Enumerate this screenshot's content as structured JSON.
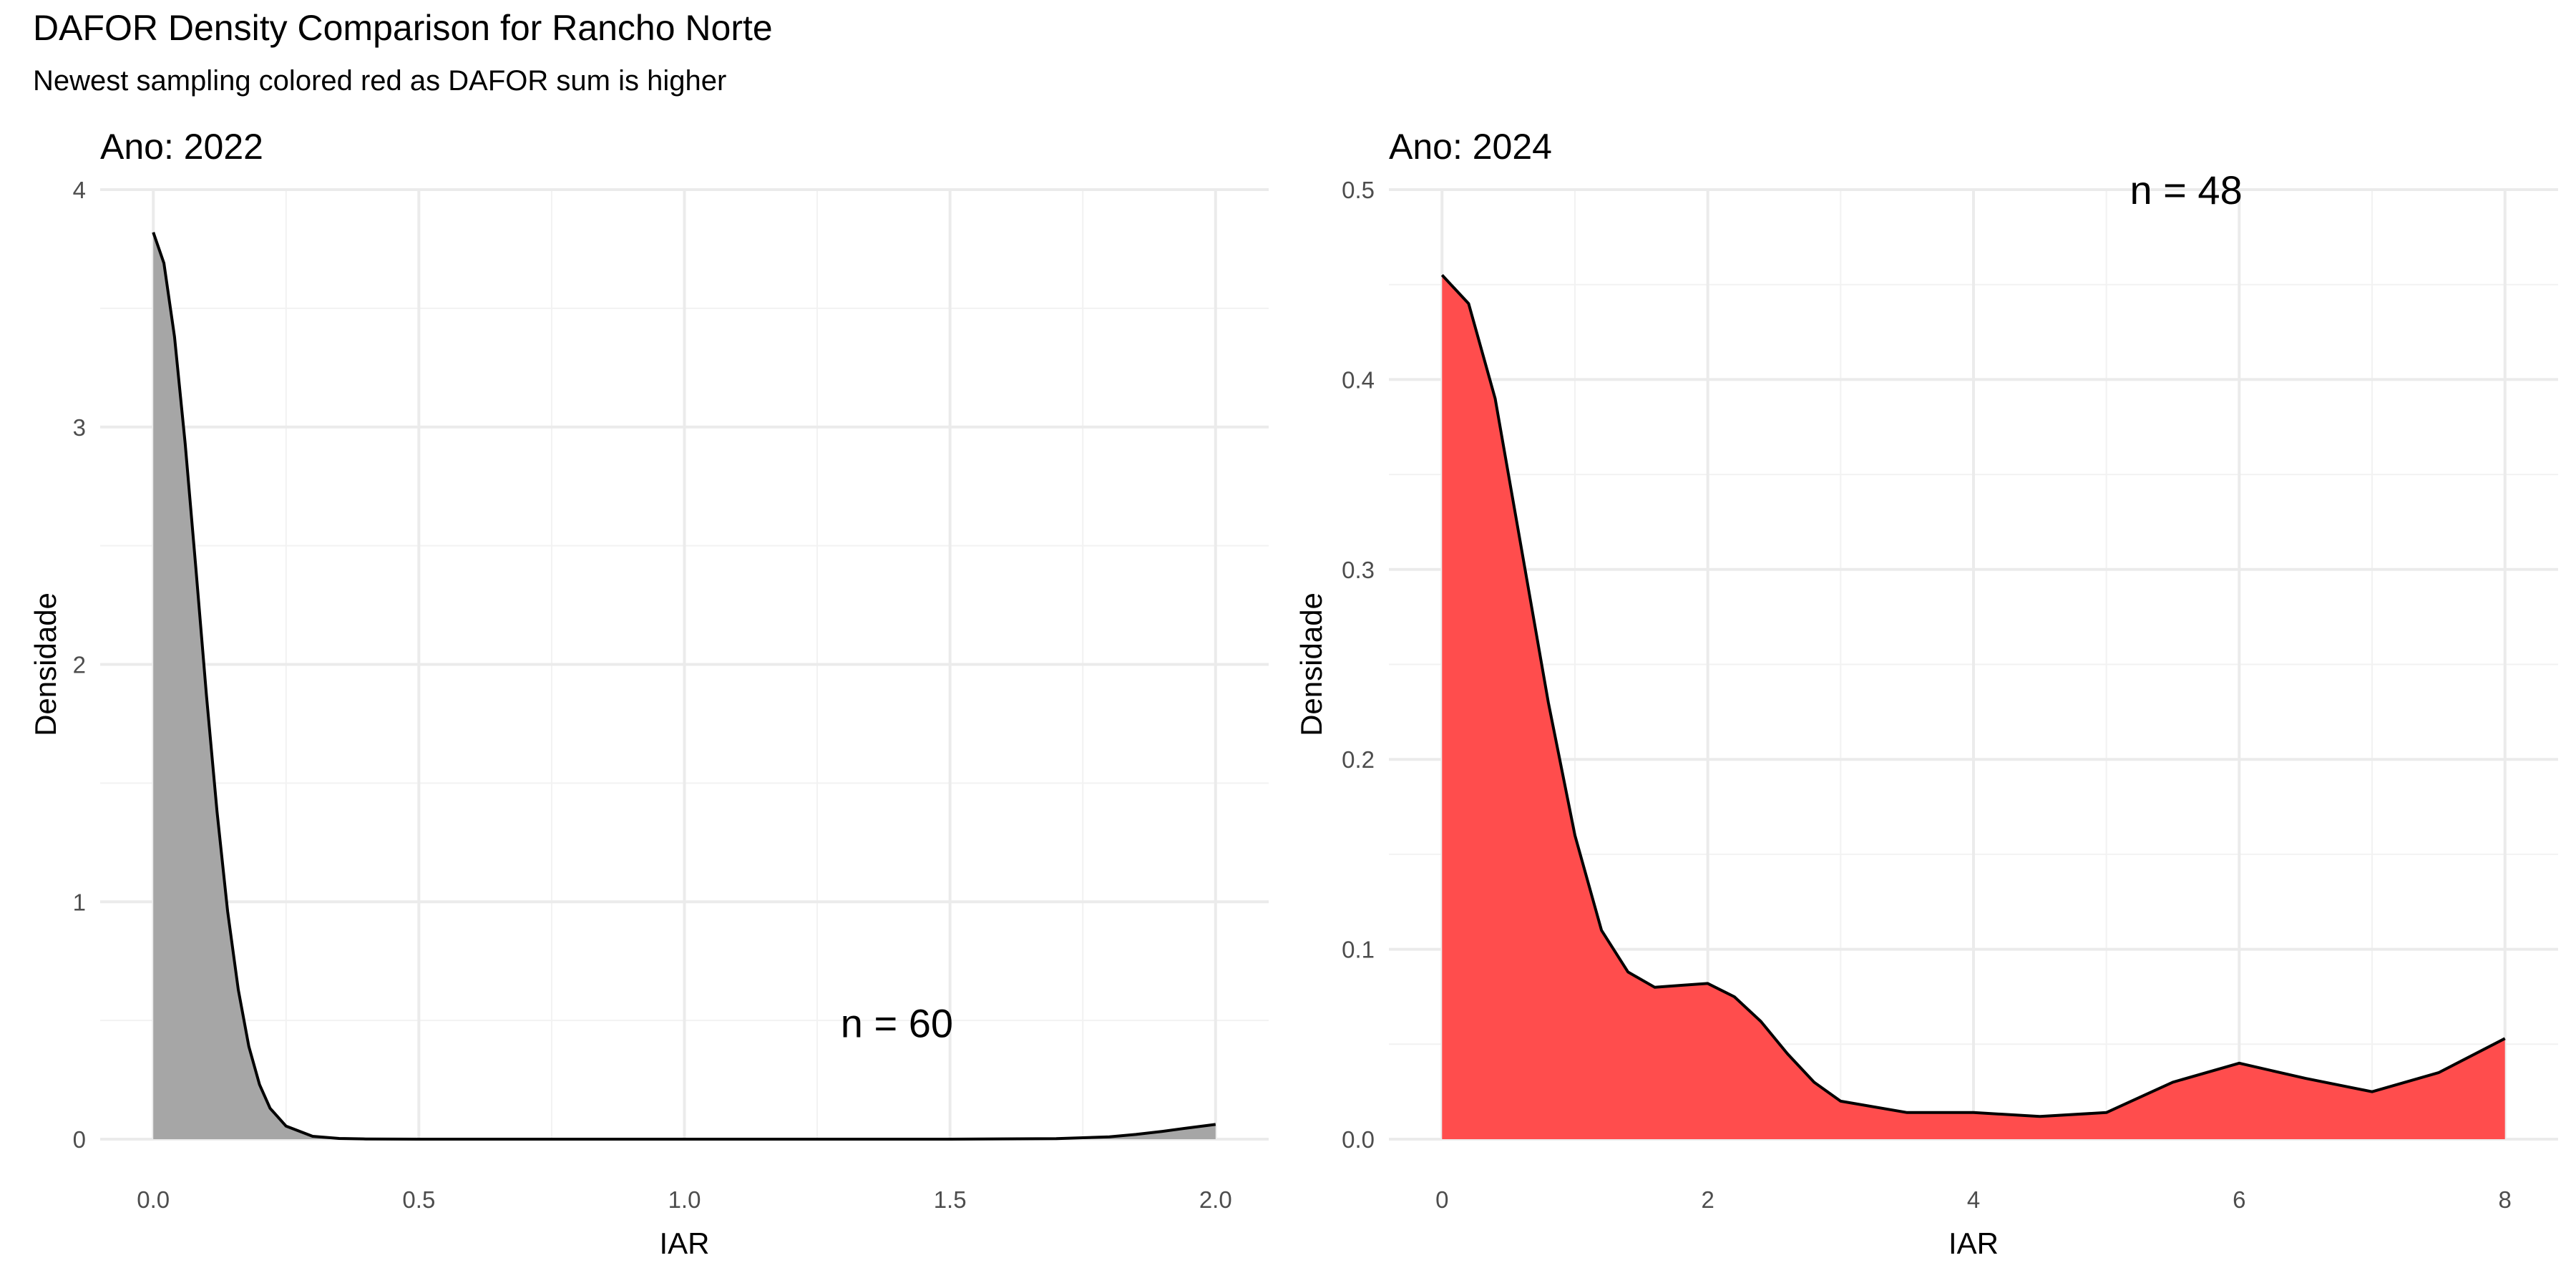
{
  "figure": {
    "title": "DAFOR Density Comparison for Rancho Norte",
    "subtitle": "Newest sampling colored red as DAFOR sum is higher"
  },
  "chart_data": [
    {
      "type": "area",
      "panel_title": "Ano: 2022",
      "xlabel": "IAR",
      "ylabel": "Densidade",
      "xlim": [
        -0.1,
        2.1
      ],
      "ylim": [
        0,
        4.0
      ],
      "x_ticks": [
        0.0,
        0.5,
        1.0,
        1.5,
        2.0
      ],
      "x_tick_labels": [
        "0.0",
        "0.5",
        "1.0",
        "1.5",
        "2.0"
      ],
      "y_ticks": [
        0,
        1,
        2,
        3,
        4
      ],
      "y_tick_labels": [
        "0",
        "1",
        "2",
        "3",
        "4"
      ],
      "grid": true,
      "fill_color": "#a6a6a6",
      "line_color": "#000000",
      "annotation": "n = 60",
      "annotation_at": {
        "x": 1.4,
        "y": 0.49
      },
      "x": [
        0.0,
        0.02,
        0.04,
        0.06,
        0.08,
        0.1,
        0.12,
        0.14,
        0.16,
        0.18,
        0.2,
        0.22,
        0.25,
        0.3,
        0.35,
        0.4,
        0.5,
        1.0,
        1.5,
        1.7,
        1.8,
        1.85,
        1.9,
        1.95,
        2.0
      ],
      "y": [
        3.82,
        3.69,
        3.38,
        2.93,
        2.41,
        1.87,
        1.38,
        0.96,
        0.63,
        0.39,
        0.23,
        0.13,
        0.055,
        0.012,
        0.003,
        0.001,
        0.0,
        0.0,
        0.0,
        0.002,
        0.01,
        0.02,
        0.033,
        0.048,
        0.062
      ]
    },
    {
      "type": "area",
      "panel_title": "Ano: 2024",
      "xlabel": "IAR",
      "ylabel": "Densidade",
      "xlim": [
        -0.4,
        8.4
      ],
      "ylim": [
        0,
        0.5
      ],
      "x_ticks": [
        0,
        2,
        4,
        6,
        8
      ],
      "x_tick_labels": [
        "0",
        "2",
        "4",
        "6",
        "8"
      ],
      "y_ticks": [
        0.0,
        0.1,
        0.2,
        0.3,
        0.4,
        0.5
      ],
      "y_tick_labels": [
        "0.0",
        "0.1",
        "0.2",
        "0.3",
        "0.4",
        "0.5"
      ],
      "grid": true,
      "fill_color": "#ff4d4d",
      "line_color": "#000000",
      "annotation": "n = 48",
      "annotation_at": {
        "x": 5.6,
        "y": 0.5
      },
      "x": [
        0.0,
        0.2,
        0.4,
        0.6,
        0.8,
        1.0,
        1.2,
        1.4,
        1.6,
        1.8,
        2.0,
        2.2,
        2.4,
        2.6,
        2.8,
        3.0,
        3.5,
        4.0,
        4.5,
        5.0,
        5.5,
        6.0,
        6.5,
        7.0,
        7.5,
        8.0
      ],
      "y": [
        0.455,
        0.44,
        0.39,
        0.31,
        0.23,
        0.16,
        0.11,
        0.088,
        0.08,
        0.081,
        0.082,
        0.075,
        0.062,
        0.045,
        0.03,
        0.02,
        0.014,
        0.014,
        0.012,
        0.014,
        0.03,
        0.04,
        0.032,
        0.025,
        0.035,
        0.053
      ]
    }
  ]
}
